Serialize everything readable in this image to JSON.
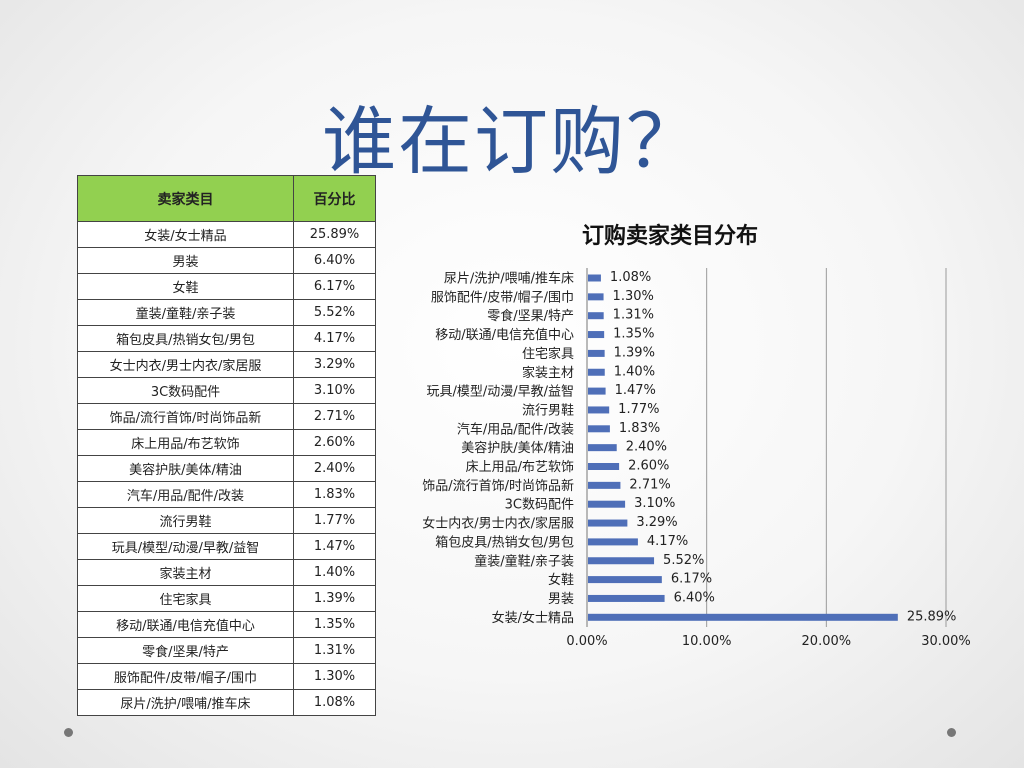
{
  "slide": {
    "title": "谁在订购？"
  },
  "table": {
    "headers": [
      "卖家类目",
      "百分比"
    ],
    "rows": [
      [
        "女装/女士精品",
        "25.89%"
      ],
      [
        "男装",
        "6.40%"
      ],
      [
        "女鞋",
        "6.17%"
      ],
      [
        "童装/童鞋/亲子装",
        "5.52%"
      ],
      [
        "箱包皮具/热销女包/男包",
        "4.17%"
      ],
      [
        "女士内衣/男士内衣/家居服",
        "3.29%"
      ],
      [
        "3C数码配件",
        "3.10%"
      ],
      [
        "饰品/流行首饰/时尚饰品新",
        "2.71%"
      ],
      [
        "床上用品/布艺软饰",
        "2.60%"
      ],
      [
        "美容护肤/美体/精油",
        "2.40%"
      ],
      [
        "汽车/用品/配件/改装",
        "1.83%"
      ],
      [
        "流行男鞋",
        "1.77%"
      ],
      [
        "玩具/模型/动漫/早教/益智",
        "1.47%"
      ],
      [
        "家装主材",
        "1.40%"
      ],
      [
        "住宅家具",
        "1.39%"
      ],
      [
        "移动/联通/电信充值中心",
        "1.35%"
      ],
      [
        "零食/坚果/特产",
        "1.31%"
      ],
      [
        "服饰配件/皮带/帽子/围巾",
        "1.30%"
      ],
      [
        "尿片/洗护/喂哺/推车床",
        "1.08%"
      ]
    ]
  },
  "chart_data": {
    "type": "bar",
    "orientation": "horizontal",
    "title": "订购卖家类目分布",
    "categories": [
      "尿片/洗护/喂哺/推车床",
      "服饰配件/皮带/帽子/围巾",
      "零食/坚果/特产",
      "移动/联通/电信充值中心",
      "住宅家具",
      "家装主材",
      "玩具/模型/动漫/早教/益智",
      "流行男鞋",
      "汽车/用品/配件/改装",
      "美容护肤/美体/精油",
      "床上用品/布艺软饰",
      "饰品/流行首饰/时尚饰品新",
      "3C数码配件",
      "女士内衣/男士内衣/家居服",
      "箱包皮具/热销女包/男包",
      "童装/童鞋/亲子装",
      "女鞋",
      "男装",
      "女装/女士精品"
    ],
    "values": [
      1.08,
      1.3,
      1.31,
      1.35,
      1.39,
      1.4,
      1.47,
      1.77,
      1.83,
      2.4,
      2.6,
      2.71,
      3.1,
      3.29,
      4.17,
      5.52,
      6.17,
      6.4,
      25.89
    ],
    "value_labels": [
      "1.08%",
      "1.30%",
      "1.31%",
      "1.35%",
      "1.39%",
      "1.40%",
      "1.47%",
      "1.77%",
      "1.83%",
      "2.40%",
      "2.60%",
      "2.71%",
      "3.10%",
      "3.29%",
      "4.17%",
      "5.52%",
      "6.17%",
      "6.40%",
      "25.89%"
    ],
    "xlim": [
      0,
      30
    ],
    "x_ticks": [
      "0.00%",
      "10.00%",
      "20.00%",
      "30.00%"
    ],
    "bar_color": "#4f6fb8",
    "grid": "vertical",
    "legend": "none"
  }
}
